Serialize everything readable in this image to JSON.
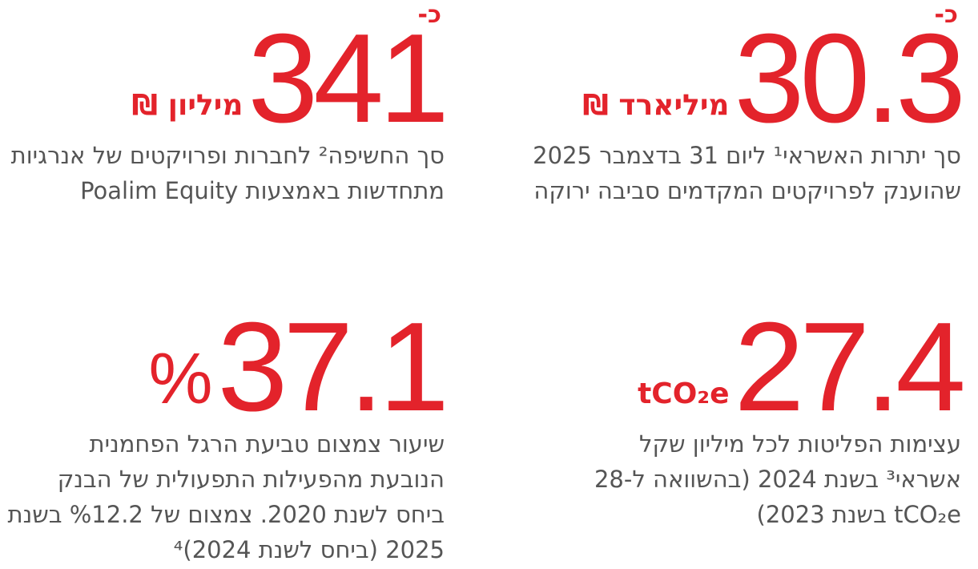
{
  "blocks": [
    {
      "prefix": "כ-",
      "value": "30.3",
      "unit": "מיליארד ₪",
      "lines": [
        "סך יתרות האשראי¹ ליום 31 בדצמבר 2025",
        "שהוענק לפרויקטים המקדמים סביבה ירוקה"
      ]
    },
    {
      "prefix": "כ-",
      "value": "341",
      "unit": "מיליון ₪",
      "lines": [
        "סך החשיפה² לחברות ופרויקטים של אנרגיות",
        "מתחדשות באמצעות Poalim Equity"
      ]
    },
    {
      "value": "27.4",
      "unit": "tCO₂e",
      "lines": [
        "עצימות הפליטות לכל מיליון שקל",
        "אשראי³ בשנת 2024 (בהשוואה ל-28",
        "tCO₂e בשנת 2023)"
      ]
    },
    {
      "value": "37.1",
      "unit": "%",
      "lines": [
        "שיעור צמצום טביעת הרגל הפחמנית",
        "הנובעת מהפעילות התפעולית של הבנק",
        "ביחס לשנת 2020. צמצום של %12.2 בשנת",
        "2025 (ביחס לשנת 2024)⁴"
      ]
    }
  ]
}
